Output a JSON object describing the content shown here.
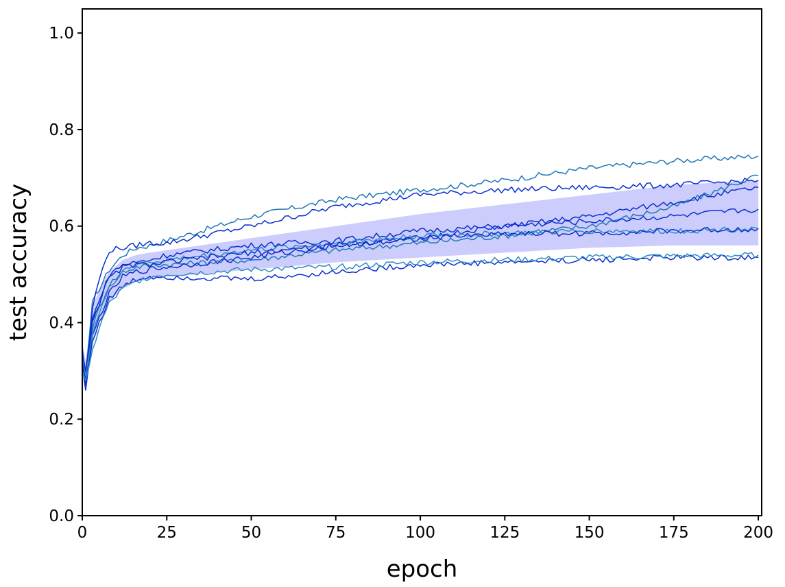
{
  "chart_data": {
    "type": "line",
    "xlabel": "epoch",
    "ylabel": "test accuracy",
    "xlim": [
      0,
      201
    ],
    "ylim": [
      0,
      1.05
    ],
    "x_ticks": [
      0,
      25,
      50,
      75,
      100,
      125,
      150,
      175,
      200
    ],
    "y_ticks": [
      0.0,
      0.2,
      0.4,
      0.6,
      0.8,
      1.0
    ],
    "x_tick_labels": [
      "0",
      "25",
      "50",
      "75",
      "100",
      "125",
      "150",
      "175",
      "200"
    ],
    "y_tick_labels": [
      "0.0",
      "0.2",
      "0.4",
      "0.6",
      "0.8",
      "1.0"
    ],
    "grid": false,
    "band": {
      "color": "#cccdfc",
      "x": [
        0,
        1,
        3,
        5,
        8,
        12,
        16,
        20,
        25,
        50,
        75,
        100,
        125,
        150,
        175,
        200
      ],
      "upper": [
        0.36,
        0.32,
        0.43,
        0.47,
        0.505,
        0.53,
        0.54,
        0.545,
        0.55,
        0.575,
        0.6,
        0.625,
        0.645,
        0.665,
        0.685,
        0.695
      ],
      "lower": [
        0.3,
        0.27,
        0.36,
        0.4,
        0.445,
        0.47,
        0.485,
        0.49,
        0.495,
        0.51,
        0.525,
        0.535,
        0.545,
        0.555,
        0.56,
        0.56
      ]
    },
    "series": [
      {
        "color": "#1f77b4",
        "x": [
          0,
          1,
          3,
          5,
          8,
          12,
          16,
          20,
          25,
          50,
          75,
          100,
          125,
          150,
          175,
          200
        ],
        "values": [
          0.34,
          0.29,
          0.44,
          0.47,
          0.51,
          0.54,
          0.555,
          0.56,
          0.57,
          0.62,
          0.655,
          0.675,
          0.695,
          0.72,
          0.735,
          0.745
        ]
      },
      {
        "color": "#1f77b4",
        "x": [
          0,
          1,
          3,
          5,
          8,
          12,
          16,
          20,
          25,
          50,
          75,
          100,
          125,
          150,
          175,
          200
        ],
        "values": [
          0.32,
          0.28,
          0.39,
          0.43,
          0.48,
          0.505,
          0.515,
          0.52,
          0.52,
          0.53,
          0.55,
          0.565,
          0.58,
          0.6,
          0.64,
          0.705
        ]
      },
      {
        "color": "#0a2fd0",
        "x": [
          0,
          1,
          3,
          5,
          8,
          12,
          16,
          20,
          25,
          50,
          75,
          100,
          125,
          150,
          175,
          200
        ],
        "values": [
          0.35,
          0.27,
          0.43,
          0.49,
          0.55,
          0.555,
          0.56,
          0.565,
          0.565,
          0.6,
          0.64,
          0.665,
          0.675,
          0.68,
          0.685,
          0.695
        ]
      },
      {
        "color": "#0a2fd0",
        "x": [
          0,
          1,
          3,
          5,
          8,
          12,
          16,
          20,
          25,
          50,
          75,
          100,
          125,
          150,
          175,
          200
        ],
        "values": [
          0.33,
          0.28,
          0.4,
          0.44,
          0.5,
          0.52,
          0.525,
          0.53,
          0.54,
          0.56,
          0.57,
          0.59,
          0.6,
          0.62,
          0.65,
          0.68
        ]
      },
      {
        "color": "#0a2fd0",
        "x": [
          0,
          1,
          3,
          5,
          8,
          12,
          16,
          20,
          25,
          50,
          75,
          100,
          125,
          150,
          175,
          200
        ],
        "values": [
          0.31,
          0.26,
          0.37,
          0.41,
          0.46,
          0.495,
          0.505,
          0.51,
          0.515,
          0.535,
          0.56,
          0.575,
          0.6,
          0.61,
          0.62,
          0.635
        ]
      },
      {
        "color": "#2e8bc0",
        "x": [
          0,
          1,
          3,
          5,
          8,
          12,
          16,
          20,
          25,
          50,
          75,
          100,
          125,
          150,
          175,
          200
        ],
        "values": [
          0.33,
          0.29,
          0.38,
          0.42,
          0.47,
          0.51,
          0.52,
          0.525,
          0.53,
          0.55,
          0.565,
          0.58,
          0.585,
          0.59,
          0.59,
          0.595
        ]
      },
      {
        "color": "#0a2fd0",
        "x": [
          0,
          1,
          3,
          5,
          8,
          12,
          16,
          20,
          25,
          50,
          75,
          100,
          125,
          150,
          175,
          200
        ],
        "values": [
          0.34,
          0.3,
          0.41,
          0.45,
          0.49,
          0.515,
          0.52,
          0.52,
          0.525,
          0.545,
          0.56,
          0.575,
          0.585,
          0.585,
          0.59,
          0.595
        ]
      },
      {
        "color": "#0a2fd0",
        "x": [
          0,
          1,
          3,
          5,
          8,
          12,
          16,
          20,
          25,
          50,
          75,
          100,
          125,
          150,
          175,
          200
        ],
        "values": [
          0.32,
          0.27,
          0.36,
          0.4,
          0.45,
          0.475,
          0.49,
          0.495,
          0.495,
          0.49,
          0.505,
          0.52,
          0.525,
          0.53,
          0.535,
          0.535
        ]
      },
      {
        "color": "#2e8bc0",
        "x": [
          0,
          1,
          3,
          5,
          8,
          12,
          16,
          20,
          25,
          50,
          75,
          100,
          125,
          150,
          175,
          200
        ],
        "values": [
          0.3,
          0.28,
          0.34,
          0.39,
          0.44,
          0.47,
          0.485,
          0.495,
          0.5,
          0.51,
          0.515,
          0.525,
          0.53,
          0.535,
          0.538,
          0.54
        ]
      }
    ]
  }
}
